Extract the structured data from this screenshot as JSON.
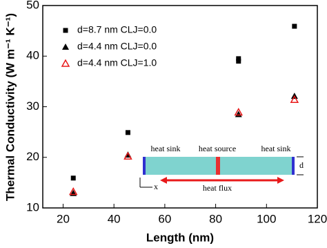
{
  "chart_data": {
    "type": "scatter",
    "x_label": "Length (nm)",
    "y_label": "Thermal Conductivity (W m⁻¹ K⁻¹)",
    "xlim": [
      12,
      120
    ],
    "ylim": [
      10,
      50
    ],
    "xticks": [
      20,
      40,
      60,
      80,
      100,
      120
    ],
    "yticks": [
      10,
      20,
      30,
      40,
      50
    ],
    "series": [
      {
        "name": "d=8.7 nm CLJ=0.0",
        "color": "#000000",
        "marker": "square",
        "x": [
          24,
          45.5,
          89,
          89,
          111
        ],
        "values": [
          15.9,
          24.9,
          39,
          39.5,
          45.9
        ]
      },
      {
        "name": "d=4.4 nm CLJ=0.0",
        "color": "#000000",
        "marker": "triangle",
        "x": [
          24,
          45.5,
          89,
          111
        ],
        "values": [
          12.9,
          20.5,
          28.5,
          32.1
        ]
      },
      {
        "name": "d=4.4 nm CLJ=1.0",
        "color": "#e8191a",
        "marker": "triangle-open",
        "x": [
          24,
          45.5,
          89,
          111
        ],
        "values": [
          13.2,
          20.2,
          28.9,
          31.4
        ]
      }
    ],
    "annotations": [
      "heat sink",
      "heat source",
      "heat sink",
      "heat flux",
      "d",
      "x"
    ]
  }
}
